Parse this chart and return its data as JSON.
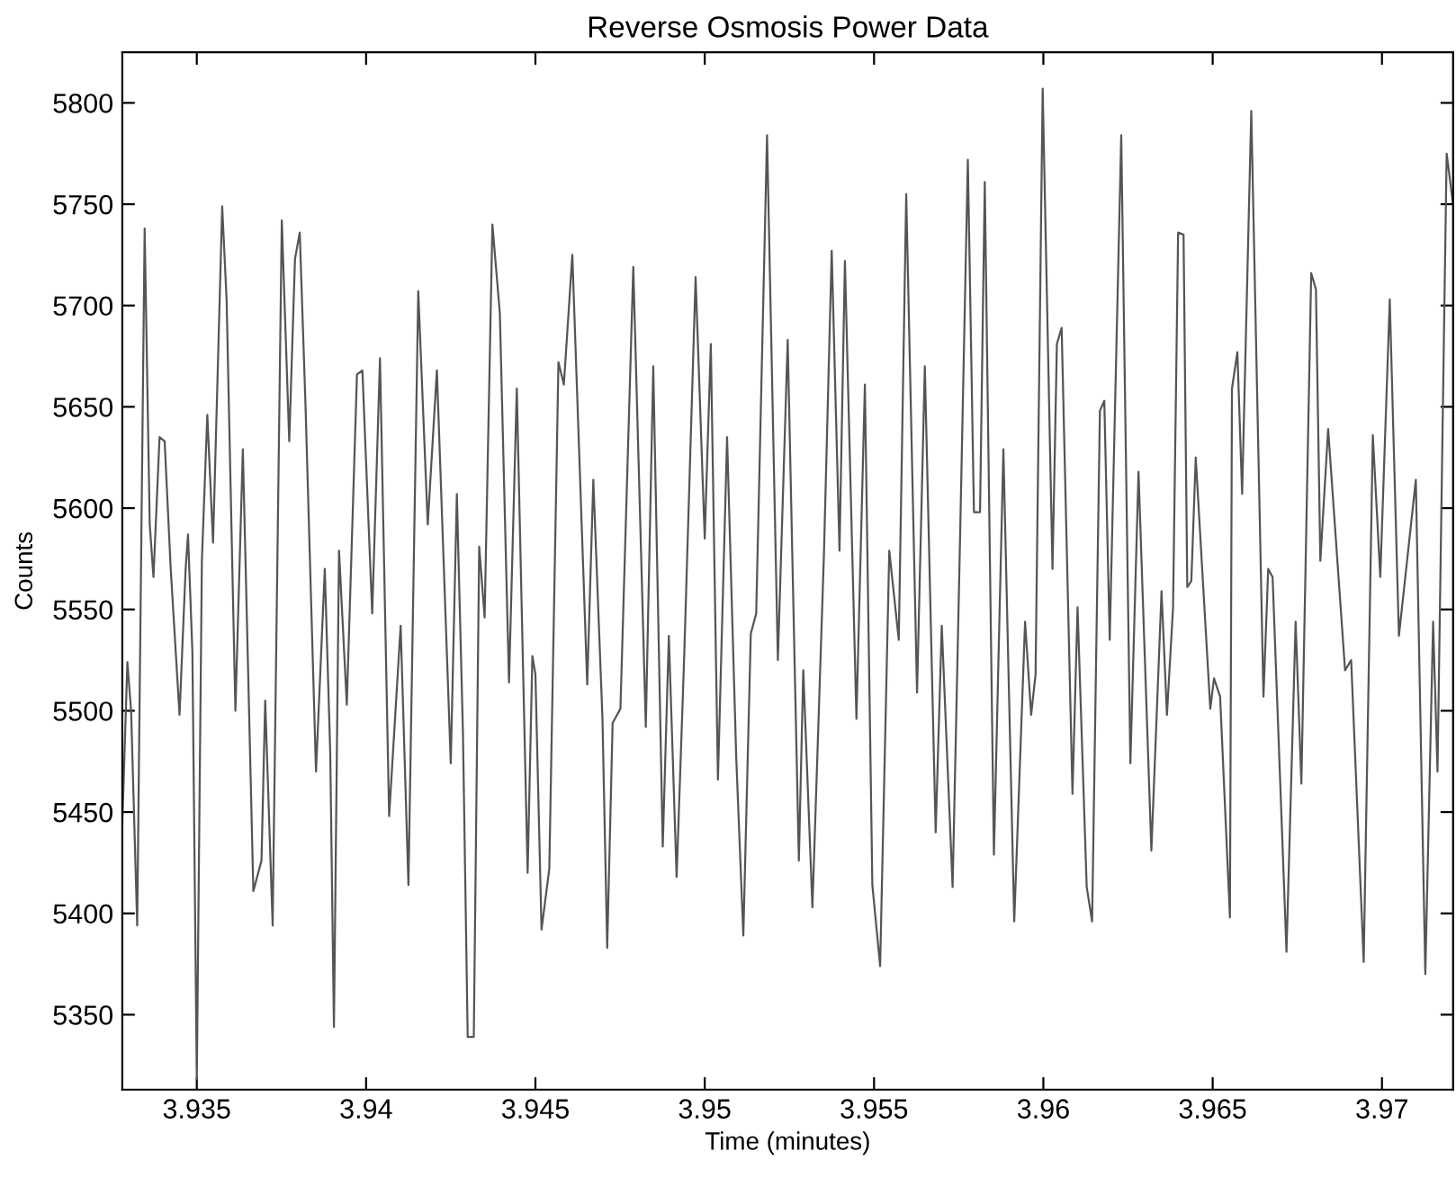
{
  "chart_data": {
    "type": "line",
    "title": "Reverse Osmosis Power Data",
    "xlabel": "Time (minutes)",
    "ylabel": "Counts",
    "xlim": [
      3.9328,
      3.9721
    ],
    "ylim": [
      5313,
      5825
    ],
    "xticks": [
      3.935,
      3.94,
      3.945,
      3.95,
      3.955,
      3.96,
      3.965,
      3.97
    ],
    "yticks": [
      5350,
      5400,
      5450,
      5500,
      5550,
      5600,
      5650,
      5700,
      5750,
      5800
    ],
    "grid": false,
    "marker": "none",
    "line_style": "solid",
    "series": [
      {
        "color": "#555555",
        "x": [
          3.9328,
          3.93295,
          3.93306,
          3.93324,
          3.93346,
          3.93361,
          3.93372,
          3.9339,
          3.93405,
          3.93423,
          3.93449,
          3.93467,
          3.93474,
          3.93487,
          3.935,
          3.93515,
          3.93531,
          3.93548,
          3.93575,
          3.93588,
          3.93614,
          3.93636,
          3.93667,
          3.93691,
          3.93702,
          3.93724,
          3.93751,
          3.93773,
          3.9379,
          3.93804,
          3.93821,
          3.93852,
          3.93878,
          3.93894,
          3.93905,
          3.9392,
          3.93943,
          3.93973,
          3.93989,
          3.94018,
          3.94041,
          3.94068,
          3.94102,
          3.94125,
          3.94154,
          3.94182,
          3.94209,
          3.9425,
          3.94268,
          3.94286,
          3.943,
          3.94318,
          3.94334,
          3.9435,
          3.94373,
          3.94395,
          3.94422,
          3.94445,
          3.94477,
          3.94491,
          3.945,
          3.94518,
          3.94541,
          3.94568,
          3.94584,
          3.94609,
          3.94653,
          3.94671,
          3.94698,
          3.94712,
          3.94728,
          3.94751,
          3.94789,
          3.94826,
          3.94848,
          3.94876,
          3.94894,
          3.94917,
          3.94939,
          3.94973,
          3.95,
          3.95018,
          3.95039,
          3.95066,
          3.95093,
          3.95114,
          3.95136,
          3.95152,
          3.95184,
          3.95216,
          3.95245,
          3.95278,
          3.95291,
          3.95318,
          3.95352,
          3.95375,
          3.95398,
          3.95414,
          3.95448,
          3.95473,
          3.95495,
          3.95518,
          3.95545,
          3.95573,
          3.95595,
          3.95627,
          3.9565,
          3.95682,
          3.957,
          3.95732,
          3.95754,
          3.95777,
          3.95795,
          3.95813,
          3.95827,
          3.95854,
          3.95882,
          3.95914,
          3.95946,
          3.95964,
          3.95977,
          3.95998,
          3.96027,
          3.9604,
          3.96054,
          3.96086,
          3.96101,
          3.96128,
          3.96144,
          3.96167,
          3.9618,
          3.96196,
          3.9623,
          3.96257,
          3.96281,
          3.96319,
          3.96349,
          3.96365,
          3.96383,
          3.96398,
          3.96414,
          3.96425,
          3.96437,
          3.9645,
          3.96493,
          3.96504,
          3.96522,
          3.96551,
          3.96557,
          3.96573,
          3.96587,
          3.96614,
          3.9665,
          3.96664,
          3.96677,
          3.96718,
          3.96745,
          3.96762,
          3.96791,
          3.96805,
          3.96818,
          3.96841,
          3.96891,
          3.96909,
          3.96946,
          3.96973,
          3.96995,
          3.97023,
          3.9705,
          3.971,
          3.97128,
          3.97151,
          3.97164,
          3.97191,
          3.97209
        ],
        "values": [
          5444,
          5524,
          5500,
          5394,
          5738,
          5592,
          5566,
          5635,
          5633,
          5570,
          5498,
          5570,
          5587,
          5529,
          5318,
          5574,
          5646,
          5583,
          5749,
          5703,
          5500,
          5629,
          5411,
          5426,
          5505,
          5394,
          5742,
          5633,
          5723,
          5736,
          5651,
          5470,
          5570,
          5480,
          5344,
          5579,
          5503,
          5666,
          5668,
          5548,
          5674,
          5448,
          5542,
          5414,
          5707,
          5592,
          5668,
          5474,
          5607,
          5489,
          5339,
          5339,
          5581,
          5546,
          5740,
          5696,
          5514,
          5659,
          5420,
          5527,
          5518,
          5392,
          5422,
          5672,
          5661,
          5725,
          5513,
          5614,
          5496,
          5383,
          5494,
          5501,
          5719,
          5492,
          5670,
          5433,
          5537,
          5418,
          5525,
          5714,
          5585,
          5681,
          5466,
          5635,
          5477,
          5389,
          5538,
          5548,
          5784,
          5525,
          5683,
          5426,
          5520,
          5403,
          5577,
          5727,
          5579,
          5722,
          5496,
          5661,
          5414,
          5374,
          5579,
          5535,
          5755,
          5509,
          5670,
          5440,
          5542,
          5413,
          5585,
          5772,
          5598,
          5598,
          5761,
          5429,
          5629,
          5396,
          5544,
          5498,
          5518,
          5807,
          5570,
          5681,
          5689,
          5459,
          5551,
          5413,
          5396,
          5648,
          5653,
          5535,
          5784,
          5474,
          5618,
          5431,
          5559,
          5498,
          5551,
          5736,
          5735,
          5561,
          5564,
          5625,
          5501,
          5516,
          5507,
          5398,
          5659,
          5677,
          5607,
          5796,
          5507,
          5570,
          5566,
          5381,
          5544,
          5464,
          5716,
          5708,
          5574,
          5639,
          5520,
          5525,
          5376,
          5636,
          5566,
          5703,
          5537,
          5614,
          5370,
          5544,
          5470,
          5775,
          5751
        ]
      }
    ]
  }
}
